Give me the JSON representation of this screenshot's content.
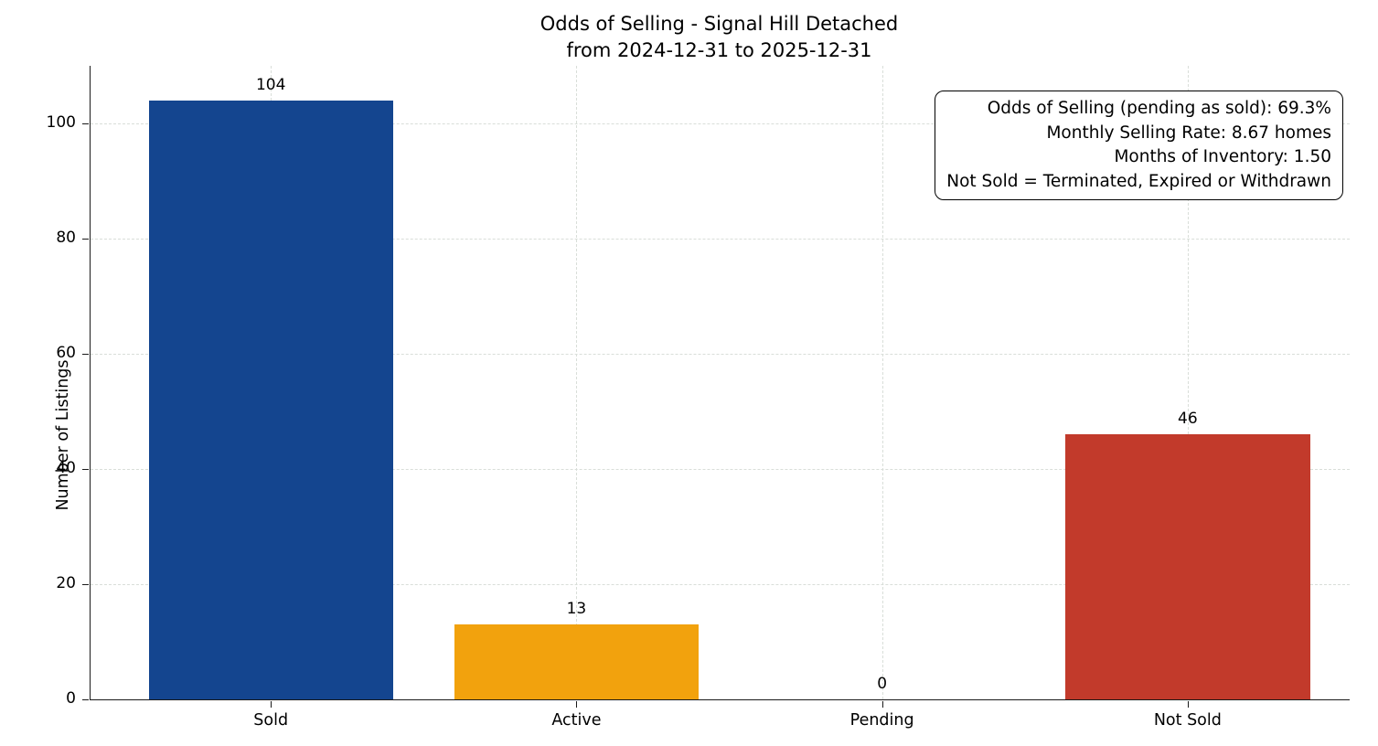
{
  "title": {
    "line1": "Odds of Selling - Signal Hill Detached",
    "line2": "from 2024-12-31 to 2025-12-31"
  },
  "ylabel": "Number of Listings",
  "annotation": {
    "lines": [
      "Odds of Selling (pending as sold): 69.3%",
      "Monthly Selling Rate: 8.67 homes",
      "Months of Inventory: 1.50",
      "Not Sold = Terminated, Expired or Withdrawn"
    ]
  },
  "chart_data": {
    "type": "bar",
    "title": "Odds of Selling - Signal Hill Detached from 2024-12-31 to 2025-12-31",
    "categories": [
      "Sold",
      "Active",
      "Pending",
      "Not Sold"
    ],
    "values": [
      104,
      13,
      0,
      46
    ],
    "bar_colors": [
      "#14458f",
      "#f2a20d",
      "#999999",
      "#c23a2b"
    ],
    "xlabel": "",
    "ylabel": "Number of Listings",
    "ylim": [
      0,
      110
    ],
    "yticks": [
      0,
      20,
      40,
      60,
      80,
      100
    ],
    "grid": "dashed",
    "grid_color": "#d9ded9",
    "spine_color": "#1a1a1a",
    "bar_width_units": 0.8,
    "xlim_units": [
      -0.59,
      3.53
    ],
    "legend_position": "none",
    "annotation_position": "upper right"
  }
}
